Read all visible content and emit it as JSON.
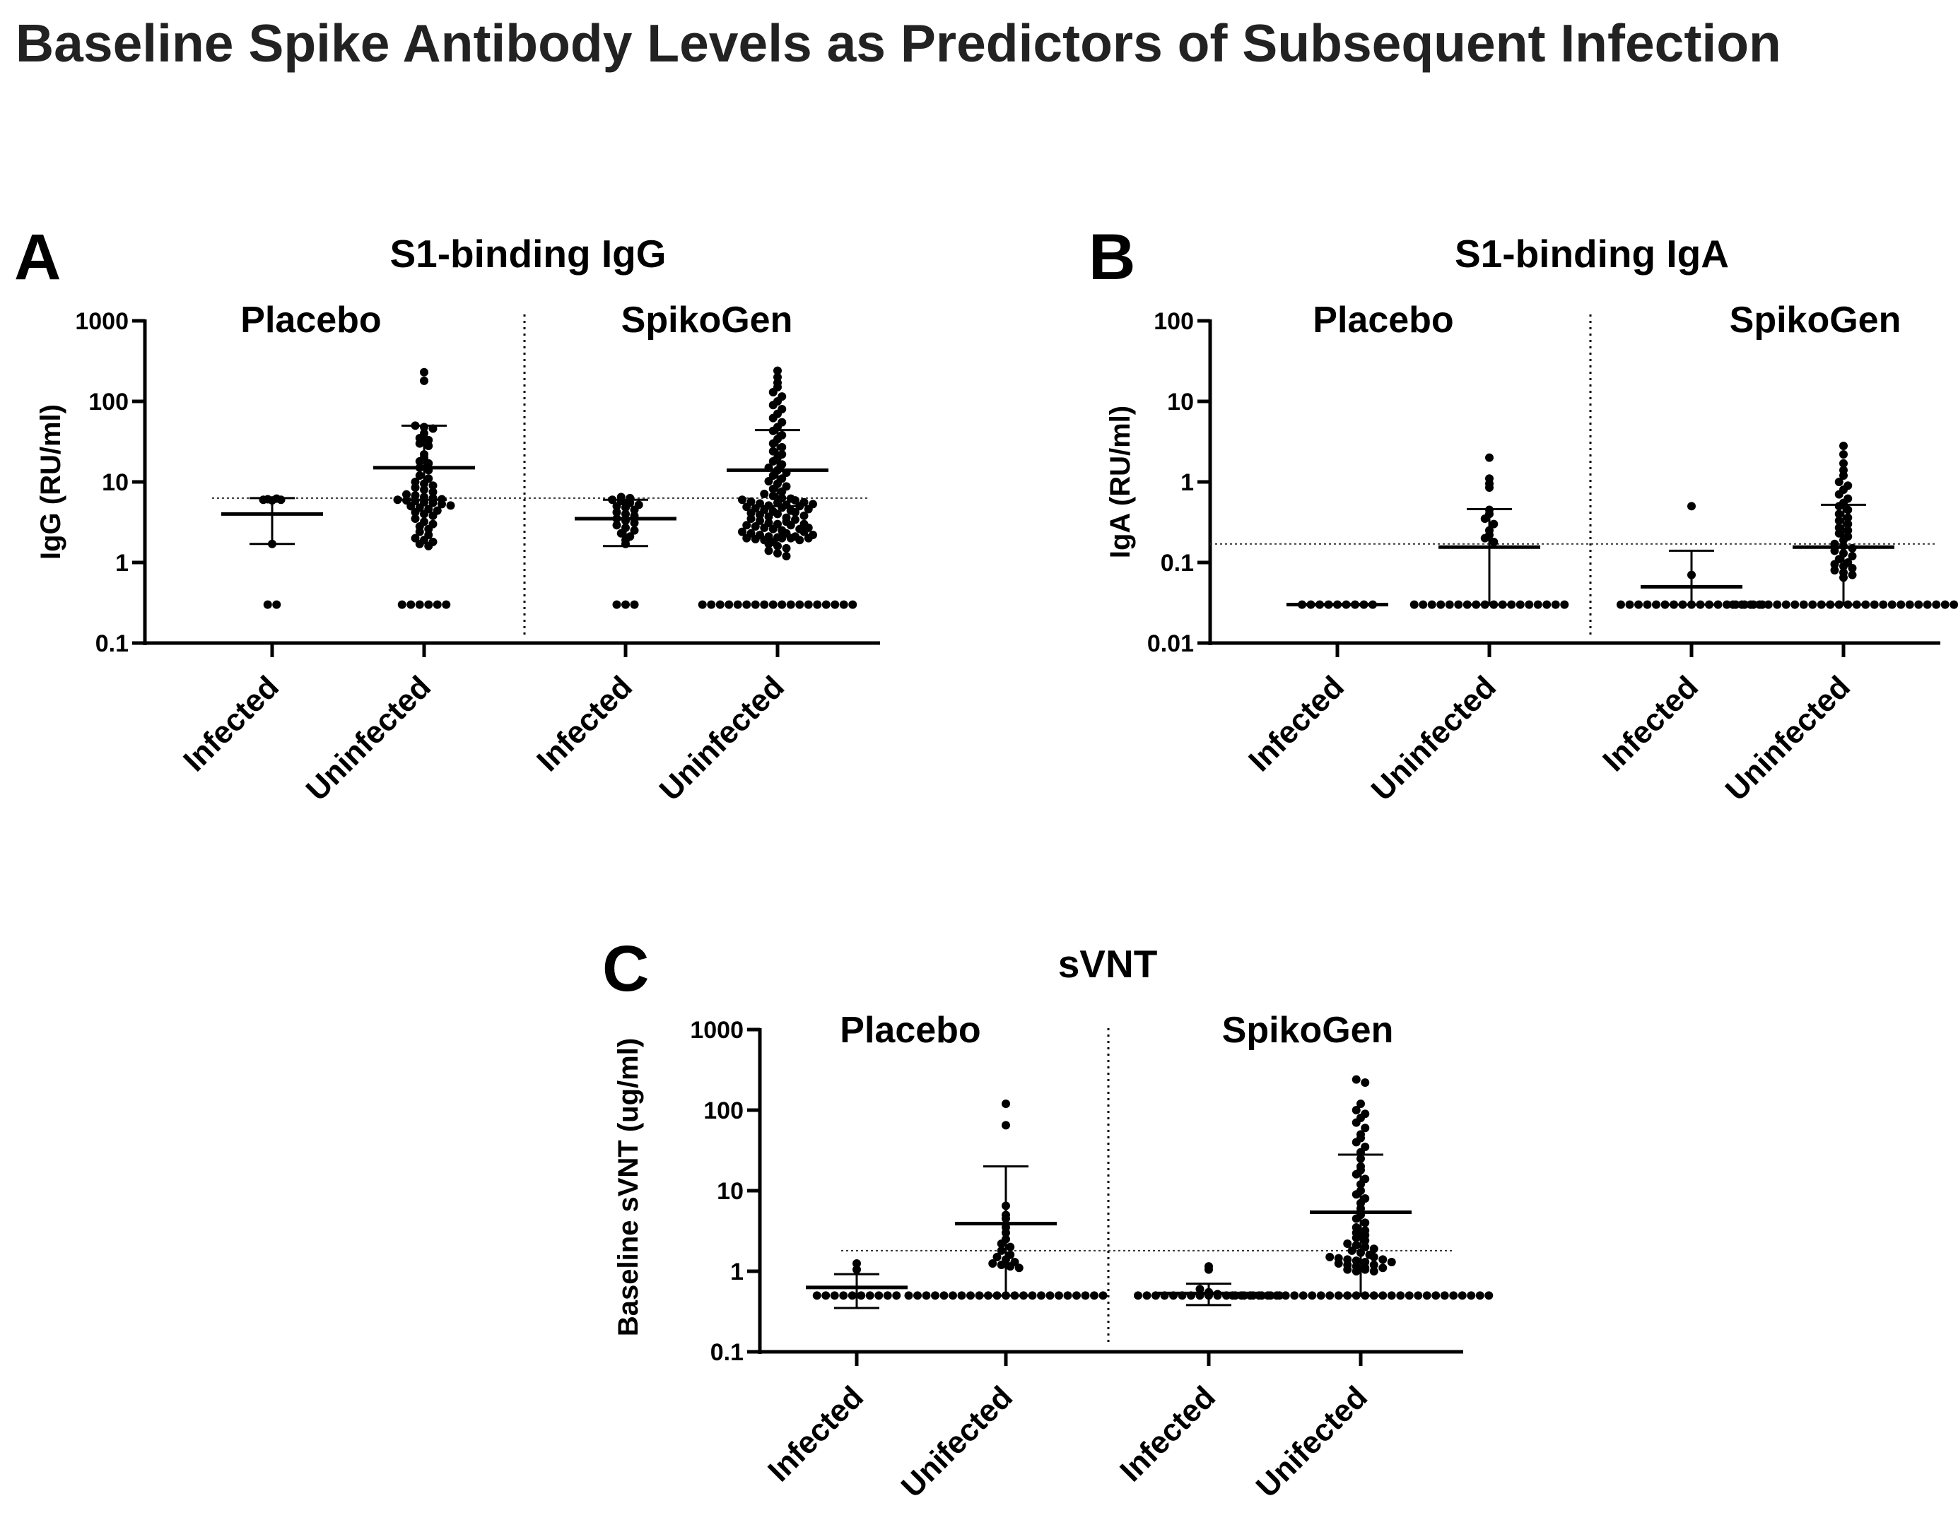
{
  "figure": {
    "title": "Baseline Spike Antibody Levels as Predictors of Subsequent Infection"
  },
  "chart_data": [
    {
      "type": "scatter",
      "panel_label": "A",
      "title": "S1-binding IgG",
      "ylabel": "IgG (RU/ml)",
      "yscale": "log",
      "ylim": [
        0.1,
        1000
      ],
      "yticks": [
        "0.1",
        "1",
        "10",
        "100",
        "1000"
      ],
      "groups": [
        "Placebo",
        "SpikoGen"
      ],
      "categories": [
        "Infected",
        "Uninfected",
        "Infected",
        "Uninfected"
      ],
      "threshold": 6.3,
      "series": [
        {
          "name": "Placebo Infected",
          "group": "Placebo",
          "mean": 4.0,
          "sd_low": 1.7,
          "sd_high": 6.3,
          "values": [
            6.0,
            6.1,
            6.2,
            5.9,
            6.0,
            1.7,
            0.3,
            0.3
          ]
        },
        {
          "name": "Placebo Uninfected",
          "group": "Placebo",
          "mean": 15,
          "sd_low": 6.0,
          "sd_high": 50,
          "values": [
            230,
            180,
            50,
            48,
            46,
            40,
            35,
            33,
            30,
            28,
            22,
            20,
            18,
            17,
            15,
            14,
            12,
            11,
            10,
            9.5,
            9,
            8.5,
            8,
            7.5,
            7,
            6.8,
            6.5,
            6.3,
            6.1,
            6,
            5.9,
            5.8,
            5.6,
            5.5,
            5.3,
            5.1,
            5,
            4.8,
            4.6,
            4.4,
            4.2,
            4,
            3.8,
            3.5,
            3.2,
            3,
            2.8,
            2.6,
            2.4,
            2.2,
            2,
            1.9,
            1.8,
            1.7,
            1.6,
            0.3,
            0.3,
            0.3,
            0.3,
            0.3,
            0.3
          ]
        },
        {
          "name": "SpikoGen Infected",
          "group": "SpikoGen",
          "mean": 3.5,
          "sd_low": 1.6,
          "sd_high": 6.0,
          "values": [
            6.5,
            6.3,
            6.0,
            5.8,
            5.5,
            5.2,
            5.0,
            4.8,
            4.5,
            4.2,
            4.0,
            3.8,
            3.5,
            3.3,
            3.1,
            2.9,
            2.7,
            2.5,
            2.3,
            2.1,
            1.9,
            1.7,
            0.3,
            0.3,
            0.3
          ]
        },
        {
          "name": "SpikoGen Uninfected",
          "group": "SpikoGen",
          "mean": 14,
          "sd_low": 5.0,
          "sd_high": 44,
          "values": [
            240,
            200,
            170,
            150,
            130,
            115,
            100,
            90,
            80,
            70,
            62,
            55,
            48,
            43,
            38,
            34,
            30,
            27,
            24,
            22,
            20,
            18,
            16.5,
            15,
            14,
            13,
            12,
            11,
            10.2,
            9.5,
            8.8,
            8.2,
            7.6,
            7.1,
            6.7,
            6.3,
            6,
            5.7,
            5.4,
            5.1,
            4.9,
            4.7,
            4.5,
            4.3,
            4.1,
            3.9,
            3.7,
            3.5,
            3.3,
            3.1,
            3,
            2.9,
            2.8,
            2.7,
            2.6,
            2.5,
            2.4,
            2.3,
            2.2,
            2.1,
            2.05,
            2,
            1.95,
            1.9,
            1.8,
            1.7,
            1.6,
            1.5,
            1.4,
            1.3,
            1.2,
            5.5,
            5.2,
            4.8,
            4.4,
            4,
            3.6,
            3.2,
            2.9,
            2.6,
            2.3,
            2.1,
            2,
            2,
            1.9,
            6.2,
            5.9,
            5.6,
            5.3,
            5,
            4.6,
            4.2,
            3.8,
            3.4,
            3,
            2.7,
            2.4,
            2.2,
            2,
            0.3,
            0.3,
            0.3,
            0.3,
            0.3,
            0.3,
            0.3,
            0.3,
            0.3,
            0.3,
            0.3,
            0.3,
            0.3,
            0.3,
            0.3,
            0.3,
            0.3,
            0.3
          ]
        }
      ]
    },
    {
      "type": "scatter",
      "panel_label": "B",
      "title": "S1-binding IgA",
      "ylabel": "IgA (RU/ml)",
      "yscale": "log",
      "ylim": [
        0.01,
        100
      ],
      "yticks": [
        "0.01",
        "0.1",
        "1",
        "10",
        "100"
      ],
      "groups": [
        "Placebo",
        "SpikoGen"
      ],
      "categories": [
        "Infected",
        "Uninfected",
        "Infected",
        "Uninfected"
      ],
      "threshold": 0.17,
      "series": [
        {
          "name": "Placebo Infected",
          "group": "Placebo",
          "mean": 0.03,
          "sd_low": 0.03,
          "sd_high": 0.03,
          "values": [
            0.03,
            0.03,
            0.03,
            0.03,
            0.03,
            0.03,
            0.03,
            0.03,
            0.03
          ]
        },
        {
          "name": "Placebo Uninfected",
          "group": "Placebo",
          "mean": 0.155,
          "sd_low": 0.03,
          "sd_high": 0.46,
          "values": [
            2.0,
            1.1,
            0.95,
            0.85,
            0.45,
            0.4,
            0.35,
            0.3,
            0.25,
            0.22,
            0.2,
            0.18,
            0.03,
            0.03,
            0.03,
            0.03,
            0.03,
            0.03,
            0.03,
            0.03,
            0.03,
            0.03,
            0.03,
            0.03,
            0.03,
            0.03,
            0.03,
            0.03,
            0.03,
            0.03
          ]
        },
        {
          "name": "SpikoGen Infected",
          "group": "SpikoGen",
          "mean": 0.05,
          "sd_low": 0.03,
          "sd_high": 0.14,
          "values": [
            0.5,
            0.07,
            0.03,
            0.03,
            0.03,
            0.03,
            0.03,
            0.03,
            0.03,
            0.03,
            0.03,
            0.03,
            0.03,
            0.03,
            0.03,
            0.03,
            0.03,
            0.03,
            0.03
          ]
        },
        {
          "name": "SpikoGen Uninfected",
          "group": "SpikoGen",
          "mean": 0.155,
          "sd_low": 0.03,
          "sd_high": 0.52,
          "values": [
            2.8,
            2.2,
            1.7,
            1.4,
            1.2,
            1.0,
            0.9,
            0.8,
            0.7,
            0.62,
            0.55,
            0.5,
            0.45,
            0.4,
            0.36,
            0.33,
            0.3,
            0.27,
            0.25,
            0.23,
            0.21,
            0.19,
            0.17,
            0.16,
            0.15,
            0.14,
            0.13,
            0.12,
            0.11,
            0.1,
            0.095,
            0.09,
            0.085,
            0.08,
            0.075,
            0.07,
            0.065,
            0.03,
            0.03,
            0.03,
            0.03,
            0.03,
            0.03,
            0.03,
            0.03,
            0.03,
            0.03,
            0.03,
            0.03,
            0.03,
            0.03,
            0.03,
            0.03,
            0.03,
            0.03,
            0.03,
            0.03,
            0.03,
            0.03,
            0.03,
            0.03,
            0.03,
            0.03
          ]
        }
      ]
    },
    {
      "type": "scatter",
      "panel_label": "C",
      "title": "sVNT",
      "ylabel": "Baseline sVNT (ug/ml)",
      "yscale": "log",
      "ylim": [
        0.1,
        1000
      ],
      "yticks": [
        "0.1",
        "1",
        "10",
        "100",
        "1000"
      ],
      "groups": [
        "Placebo",
        "SpikoGen"
      ],
      "categories": [
        "Infected",
        "Unifected",
        "Infected",
        "Unifected"
      ],
      "threshold": 1.8,
      "series": [
        {
          "name": "Placebo Infected",
          "group": "Placebo",
          "mean": 0.63,
          "sd_low": 0.35,
          "sd_high": 0.92,
          "values": [
            1.25,
            1.05,
            0.5,
            0.5,
            0.5,
            0.5,
            0.5,
            0.5,
            0.5,
            0.5,
            0.5,
            0.5
          ]
        },
        {
          "name": "Placebo Unifected",
          "group": "Placebo",
          "mean": 3.9,
          "sd_low": 0.5,
          "sd_high": 20,
          "values": [
            120,
            65,
            6.5,
            5,
            4.5,
            3.5,
            3.0,
            2.5,
            2.2,
            2.0,
            1.8,
            1.6,
            1.5,
            1.4,
            1.3,
            1.25,
            1.2,
            1.15,
            1.1,
            0.5,
            0.5,
            0.5,
            0.5,
            0.5,
            0.5,
            0.5,
            0.5,
            0.5,
            0.5,
            0.5,
            0.5,
            0.5,
            0.5,
            0.5,
            0.5,
            0.5,
            0.5,
            0.5,
            0.5,
            0.5,
            0.5,
            0.5
          ]
        },
        {
          "name": "SpikoGen Infected",
          "group": "SpikoGen",
          "mean": 0.53,
          "sd_low": 0.38,
          "sd_high": 0.7,
          "values": [
            1.15,
            1.05,
            0.6,
            0.55,
            0.52,
            0.5,
            0.5,
            0.5,
            0.5,
            0.5,
            0.5,
            0.5,
            0.5,
            0.5,
            0.5,
            0.5,
            0.5,
            0.5,
            0.5,
            0.5,
            0.5,
            0.5
          ]
        },
        {
          "name": "SpikoGen Unifected",
          "group": "SpikoGen",
          "mean": 5.4,
          "sd_low": 0.5,
          "sd_high": 28,
          "values": [
            240,
            220,
            120,
            100,
            90,
            80,
            70,
            60,
            50,
            45,
            40,
            35,
            30,
            25,
            20,
            18,
            16,
            14,
            12,
            10,
            9,
            8,
            7,
            6,
            5,
            4.5,
            4,
            3.5,
            3.2,
            3,
            2.8,
            2.6,
            2.4,
            2.2,
            2.1,
            2,
            1.9,
            1.8,
            1.7,
            1.6,
            1.5,
            1.45,
            1.4,
            1.35,
            1.3,
            1.25,
            1.2,
            1.15,
            1.1,
            1.05,
            1.0,
            1.5,
            1.4,
            1.3,
            1.2,
            1.1,
            1.05,
            1.0,
            0.5,
            0.5,
            0.5,
            0.5,
            0.5,
            0.5,
            0.5,
            0.5,
            0.5,
            0.5,
            0.5,
            0.5,
            0.5,
            0.5,
            0.5,
            0.5,
            0.5,
            0.5,
            0.5,
            0.5,
            0.5,
            0.5,
            0.5,
            0.5,
            0.5,
            0.5,
            0.5,
            0.5,
            0.5,
            0.5
          ]
        }
      ]
    }
  ]
}
